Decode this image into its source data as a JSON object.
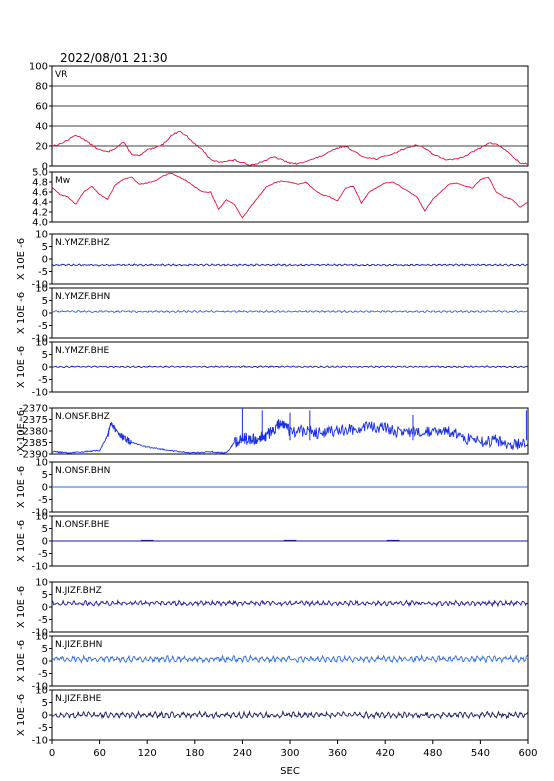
{
  "title": "2022/08/01 21:30",
  "chart_data": [
    {
      "type": "line",
      "label": "VR",
      "ylim": [
        0,
        100
      ],
      "yticks": [
        "100",
        "80",
        "60",
        "40",
        "20",
        "0"
      ],
      "grid": true,
      "color": "#e0103c",
      "x": [
        0,
        10,
        20,
        30,
        40,
        50,
        60,
        70,
        80,
        90,
        100,
        110,
        120,
        130,
        140,
        150,
        160,
        170,
        180,
        190,
        200,
        210,
        220,
        230,
        240,
        250,
        260,
        270,
        280,
        290,
        300,
        310,
        320,
        330,
        340,
        350,
        360,
        370,
        380,
        390,
        400,
        410,
        420,
        430,
        440,
        450,
        460,
        470,
        480,
        490,
        500,
        510,
        520,
        530,
        540,
        550,
        560,
        570,
        580,
        590,
        600
      ],
      "values": [
        20,
        22,
        26,
        31,
        27,
        21,
        16,
        14,
        18,
        24,
        12,
        10,
        16,
        18,
        22,
        30,
        35,
        30,
        22,
        16,
        6,
        4,
        5,
        6,
        3,
        1,
        3,
        6,
        9,
        6,
        3,
        2,
        5,
        7,
        10,
        14,
        18,
        20,
        15,
        10,
        8,
        7,
        10,
        12,
        16,
        19,
        21,
        18,
        12,
        8,
        6,
        7,
        10,
        14,
        18,
        23,
        22,
        17,
        10,
        3,
        2
      ]
    },
    {
      "type": "line",
      "label": "Mw",
      "ylim": [
        4.0,
        5.0
      ],
      "yticks": [
        "5.0",
        "4.8",
        "4.6",
        "4.4",
        "4.2",
        "4.0"
      ],
      "grid": false,
      "color": "#e0103c",
      "x": [
        0,
        10,
        20,
        30,
        40,
        50,
        60,
        70,
        80,
        90,
        100,
        110,
        120,
        130,
        140,
        150,
        160,
        170,
        180,
        190,
        200,
        210,
        220,
        230,
        240,
        250,
        260,
        270,
        280,
        290,
        300,
        310,
        320,
        330,
        340,
        350,
        360,
        370,
        380,
        390,
        400,
        410,
        420,
        430,
        440,
        450,
        460,
        470,
        480,
        490,
        500,
        510,
        520,
        530,
        540,
        550,
        560,
        570,
        580,
        590,
        600
      ],
      "values": [
        4.7,
        4.55,
        4.5,
        4.35,
        4.6,
        4.72,
        4.55,
        4.45,
        4.75,
        4.85,
        4.9,
        4.75,
        4.78,
        4.82,
        4.92,
        4.98,
        4.9,
        4.82,
        4.7,
        4.6,
        4.6,
        4.25,
        4.45,
        4.35,
        4.08,
        4.3,
        4.5,
        4.7,
        4.78,
        4.82,
        4.8,
        4.75,
        4.8,
        4.65,
        4.55,
        4.5,
        4.42,
        4.68,
        4.72,
        4.38,
        4.6,
        4.7,
        4.78,
        4.8,
        4.7,
        4.6,
        4.5,
        4.22,
        4.45,
        4.6,
        4.75,
        4.78,
        4.72,
        4.68,
        4.85,
        4.9,
        4.6,
        4.5,
        4.45,
        4.3,
        4.4
      ]
    },
    {
      "type": "line",
      "label": "N.YMZF.BHZ",
      "ylim": [
        -10,
        10
      ],
      "yticks": [
        "10",
        "5",
        "0",
        "-5",
        "-10"
      ],
      "color": "#1a1a9e",
      "level": -2.4,
      "noise": 0.3,
      "ylabel": "X 10E -6"
    },
    {
      "type": "line",
      "label": "N.YMZF.BHN",
      "ylim": [
        -10,
        10
      ],
      "yticks": [
        "10",
        "5",
        "0",
        "-5",
        "-10"
      ],
      "color": "#2f6bd8",
      "level": 0.6,
      "noise": 0.3,
      "ylabel": "X 10E -6"
    },
    {
      "type": "line",
      "label": "N.YMZF.BHE",
      "ylim": [
        -10,
        10
      ],
      "yticks": [
        "10",
        "5",
        "0",
        "-5",
        "-10"
      ],
      "color": "#1a1a9e",
      "level": 0.1,
      "noise": 0.25,
      "ylabel": "X 10E -6"
    },
    {
      "type": "line",
      "label": "N.ONSF.BHZ",
      "ylim": [
        -2390,
        -2370
      ],
      "yticks": [
        "-2370",
        "-2375",
        "-2380",
        "-2385",
        "-2390"
      ],
      "color": "#1a30e0",
      "x": [
        0,
        20,
        40,
        60,
        70,
        75,
        80,
        90,
        100,
        120,
        140,
        160,
        180,
        200,
        220,
        230,
        240,
        250,
        260,
        270,
        280,
        290,
        300,
        320,
        340,
        360,
        380,
        400,
        420,
        440,
        460,
        480,
        500,
        520,
        540,
        560,
        580,
        600
      ],
      "values": [
        -2389,
        -2389.5,
        -2389,
        -2388.5,
        -2382,
        -2376,
        -2380,
        -2383,
        -2385,
        -2387,
        -2388,
        -2389,
        -2389.5,
        -2389,
        -2389.5,
        -2385,
        -2383,
        -2384,
        -2383,
        -2382,
        -2379,
        -2376,
        -2380,
        -2380,
        -2381,
        -2380,
        -2379,
        -2378,
        -2379,
        -2381,
        -2380,
        -2380,
        -2380,
        -2383,
        -2385,
        -2384,
        -2386,
        -2385
      ],
      "ylabel": "X 10E -6"
    },
    {
      "type": "line",
      "label": "N.ONSF.BHN",
      "ylim": [
        -10,
        10
      ],
      "yticks": [
        "10",
        "5",
        "0",
        "-5",
        "-10"
      ],
      "color": "#2f6bd8",
      "level": 0.0,
      "noise": 0.0,
      "ylabel": "X 10E -6"
    },
    {
      "type": "line",
      "label": "N.ONSF.BHE",
      "ylim": [
        -10,
        10
      ],
      "yticks": [
        "10",
        "5",
        "0",
        "-5",
        "-10"
      ],
      "color": "#1a1a9e",
      "level": 0.0,
      "noise": 0.0,
      "ylabel": "X 10E -6"
    },
    {
      "type": "line",
      "label": "N.JIZF.BHZ",
      "ylim": [
        -10,
        10
      ],
      "yticks": [
        "10",
        "5",
        "0",
        "-5",
        "-10"
      ],
      "color": "#1a1a9e",
      "level": 1.5,
      "noise": 0.8,
      "ylabel": "X 10E -6"
    },
    {
      "type": "line",
      "label": "N.JIZF.BHN",
      "ylim": [
        -10,
        10
      ],
      "yticks": [
        "10",
        "5",
        "0",
        "-5",
        "-10"
      ],
      "color": "#2f6bd8",
      "level": 0.8,
      "noise": 1.0,
      "ylabel": "X 10E -6"
    },
    {
      "type": "line",
      "label": "N.JIZF.BHE",
      "ylim": [
        -10,
        10
      ],
      "yticks": [
        "10",
        "5",
        "0",
        "-5",
        "-10"
      ],
      "color": "#1a1a60",
      "level": 0.0,
      "noise": 1.0,
      "ylabel": "X 10E -6"
    }
  ],
  "x_axis": {
    "label": "SEC",
    "xlim": [
      0,
      600
    ],
    "ticks": [
      "0",
      "60",
      "120",
      "180",
      "240",
      "300",
      "360",
      "420",
      "480",
      "540",
      "600"
    ]
  }
}
